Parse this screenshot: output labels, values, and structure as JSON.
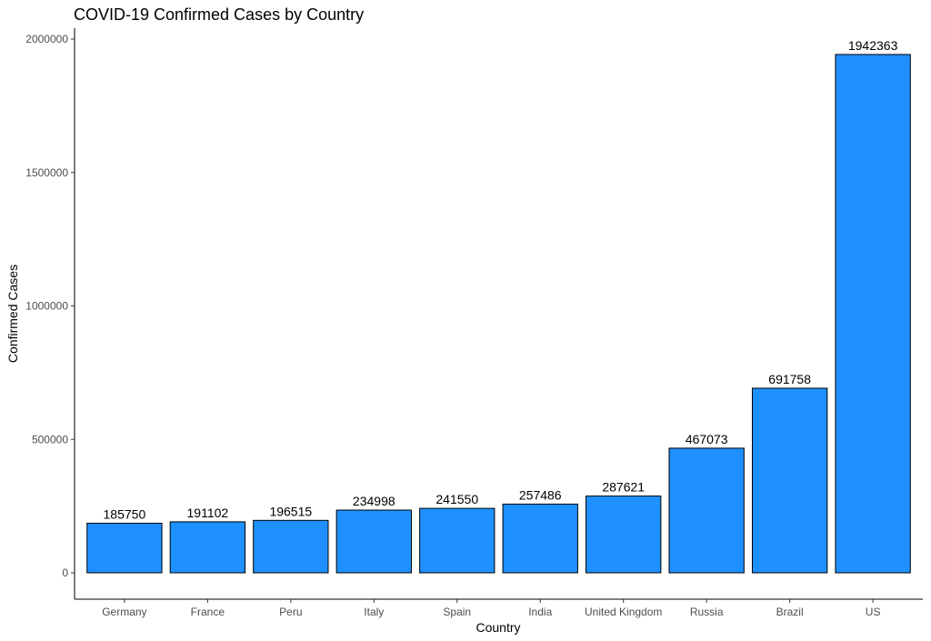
{
  "chart_data": {
    "type": "bar",
    "title": "COVID-19 Confirmed Cases by Country",
    "xlabel": "Country",
    "ylabel": "Confirmed Cases",
    "categories": [
      "Germany",
      "France",
      "Peru",
      "Italy",
      "Spain",
      "India",
      "United Kingdom",
      "Russia",
      "Brazil",
      "US"
    ],
    "values": [
      185750,
      191102,
      196515,
      234998,
      241550,
      257486,
      287621,
      467073,
      691758,
      1942363
    ],
    "data_labels": [
      "185750",
      "191102",
      "196515",
      "234998",
      "241550",
      "257486",
      "287621",
      "467073",
      "691758",
      "1942363"
    ],
    "ylim": [
      0,
      2040000
    ],
    "yticks": [
      0,
      500000,
      1000000,
      1500000,
      2000000
    ],
    "ytick_labels": [
      "0",
      "500000",
      "1000000",
      "1500000",
      "2000000"
    ],
    "grid": false,
    "legend": "none",
    "bar_color": "#1E90FF",
    "bar_outline": "#000000"
  }
}
